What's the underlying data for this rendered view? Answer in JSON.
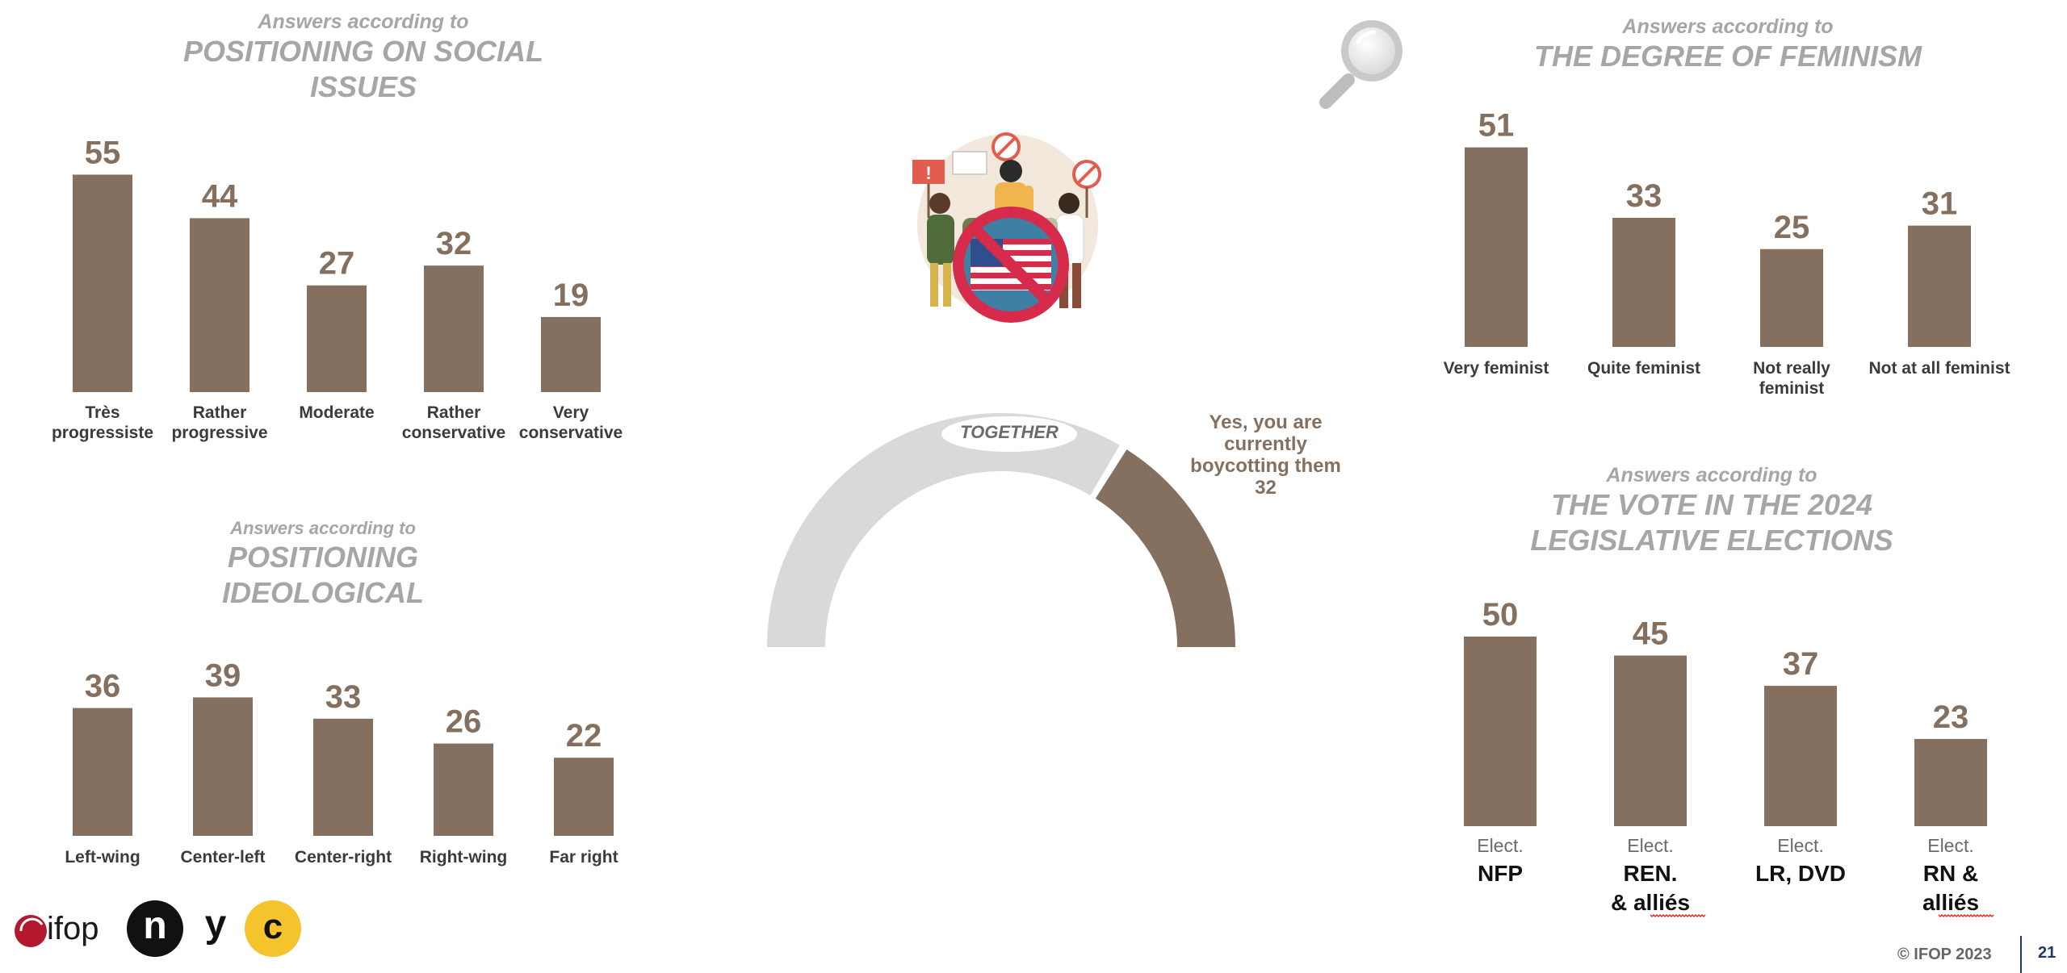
{
  "colors": {
    "bar": "#85705f",
    "gauge_track": "#d9d9d9",
    "caption": "#a6a6a6",
    "accent_red": "#d9322a",
    "logo_yellow": "#f5c42c"
  },
  "headers": {
    "social": {
      "sub": "Answers according to",
      "title_line1": "POSITIONING ON SOCIAL",
      "title_line2": "ISSUES"
    },
    "ideological": {
      "sub": "Answers according to",
      "title_line1": "POSITIONING",
      "title_line2": "IDEOLOGICAL"
    },
    "feminism": {
      "sub": "Answers according to",
      "title_line1": "THE DEGREE OF FEMINISM"
    },
    "vote": {
      "sub": "Answers according to",
      "title_line1": "THE VOTE IN THE 2024",
      "title_line2": "LEGISLATIVE ELECTIONS"
    }
  },
  "gauge": {
    "together_label": "TOGETHER",
    "callout_lines": [
      "Yes, you are",
      "currently",
      "boycotting them",
      "32"
    ],
    "value": 32,
    "max": 100
  },
  "icons": {
    "magnifier": "magnifier-icon",
    "illustration": "protest-boycott-usa-illustration"
  },
  "logos": {
    "ifop": "ifop",
    "n": "n",
    "y": "y",
    "c": "c"
  },
  "footer": {
    "copyright": "© IFOP 2023",
    "page": "21"
  },
  "chart_data": [
    {
      "id": "social",
      "type": "bar",
      "categories": [
        [
          "Très",
          "progressiste"
        ],
        [
          "Rather",
          "progressive"
        ],
        [
          "Moderate"
        ],
        [
          "Rather",
          "conservative"
        ],
        [
          "Very",
          "conservative"
        ]
      ],
      "values": [
        55,
        44,
        27,
        32,
        19
      ]
    },
    {
      "id": "ideological",
      "type": "bar",
      "categories": [
        [
          "Left-wing"
        ],
        [
          "Center-left"
        ],
        [
          "Center-right"
        ],
        [
          "Right-wing"
        ],
        [
          "Far right"
        ]
      ],
      "values": [
        36,
        39,
        33,
        26,
        22
      ]
    },
    {
      "id": "feminism",
      "type": "bar",
      "categories": [
        [
          "Very feminist"
        ],
        [
          "Quite feminist"
        ],
        [
          "Not really",
          "feminist"
        ],
        [
          "Not at all feminist"
        ]
      ],
      "values": [
        51,
        33,
        25,
        31
      ]
    },
    {
      "id": "vote",
      "type": "bar",
      "categories": [
        {
          "sub": "Elect.",
          "main": [
            "NFP"
          ]
        },
        {
          "sub": "Elect.",
          "main": [
            "REN.",
            "& alliés"
          ]
        },
        {
          "sub": "Elect.",
          "main": [
            "LR, DVD"
          ]
        },
        {
          "sub": "Elect.",
          "main": [
            "RN &",
            "alliés"
          ]
        }
      ],
      "values": [
        50,
        45,
        37,
        23
      ]
    }
  ]
}
